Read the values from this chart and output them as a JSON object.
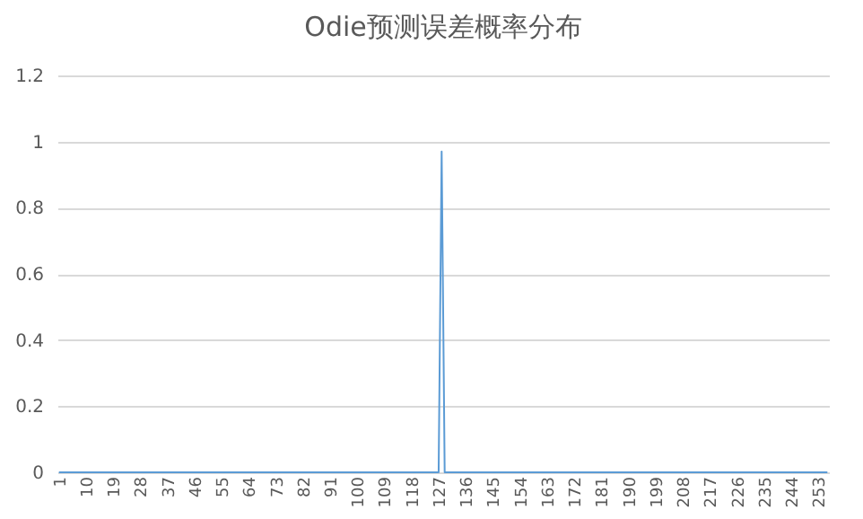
{
  "chart_data": {
    "type": "line",
    "title": "Odie预测误差概率分布",
    "categories": [
      "1",
      null,
      null,
      null,
      null,
      null,
      null,
      null,
      null,
      "10",
      null,
      null,
      null,
      null,
      null,
      null,
      null,
      null,
      "19",
      null,
      null,
      null,
      null,
      null,
      null,
      null,
      null,
      "28",
      null,
      null,
      null,
      null,
      null,
      null,
      null,
      null,
      "37",
      null,
      null,
      null,
      null,
      null,
      null,
      null,
      null,
      "46",
      null,
      null,
      null,
      null,
      null,
      null,
      null,
      null,
      "55",
      null,
      null,
      null,
      null,
      null,
      null,
      null,
      null,
      "64",
      null,
      null,
      null,
      null,
      null,
      null,
      null,
      null,
      "73",
      null,
      null,
      null,
      null,
      null,
      null,
      null,
      null,
      "82",
      null,
      null,
      null,
      null,
      null,
      null,
      null,
      null,
      "91",
      null,
      null,
      null,
      null,
      null,
      null,
      null,
      null,
      "100",
      null,
      null,
      null,
      null,
      null,
      null,
      null,
      null,
      "109",
      null,
      null,
      null,
      null,
      null,
      null,
      null,
      null,
      "118",
      null,
      null,
      null,
      null,
      null,
      null,
      null,
      null,
      "127",
      null,
      null,
      null,
      null,
      null,
      null,
      null,
      null,
      "136",
      null,
      null,
      null,
      null,
      null,
      null,
      null,
      null,
      "145",
      null,
      null,
      null,
      null,
      null,
      null,
      null,
      null,
      "154",
      null,
      null,
      null,
      null,
      null,
      null,
      null,
      null,
      "163",
      null,
      null,
      null,
      null,
      null,
      null,
      null,
      null,
      "172",
      null,
      null,
      null,
      null,
      null,
      null,
      null,
      null,
      "181",
      null,
      null,
      null,
      null,
      null,
      null,
      null,
      null,
      "190",
      null,
      null,
      null,
      null,
      null,
      null,
      null,
      null,
      "199",
      null,
      null,
      null,
      null,
      null,
      null,
      null,
      null,
      "208",
      null,
      null,
      null,
      null,
      null,
      null,
      null,
      null,
      "217",
      null,
      null,
      null,
      null,
      null,
      null,
      null,
      null,
      "226",
      null,
      null,
      null,
      null,
      null,
      null,
      null,
      null,
      "235",
      null,
      null,
      null,
      null,
      null,
      null,
      null,
      null,
      "244",
      null,
      null,
      null,
      null,
      null,
      null,
      null,
      null,
      "253",
      null,
      null,
      null
    ],
    "series": [
      {
        "color": "#5b9bd5",
        "values": [
          0,
          0,
          0,
          0,
          0,
          0,
          0,
          0,
          0,
          0,
          0,
          0,
          0,
          0,
          0,
          0,
          0,
          0,
          0,
          0,
          0,
          0,
          0,
          0,
          0,
          0,
          0,
          0,
          0,
          0,
          0,
          0,
          0,
          0,
          0,
          0,
          0,
          0,
          0,
          0,
          0,
          0,
          0,
          0,
          0,
          0,
          0,
          0,
          0,
          0,
          0,
          0,
          0,
          0,
          0,
          0,
          0,
          0,
          0,
          0,
          0,
          0,
          0,
          0,
          0,
          0,
          0,
          0,
          0,
          0,
          0,
          0,
          0,
          0,
          0,
          0,
          0,
          0,
          0,
          0,
          0,
          0,
          0,
          0,
          0,
          0,
          0,
          0,
          0,
          0,
          0,
          0,
          0,
          0,
          0,
          0,
          0,
          0,
          0,
          0,
          0,
          0,
          0,
          0,
          0,
          0,
          0,
          0,
          0,
          0,
          0,
          0,
          0,
          0,
          0,
          0,
          0,
          0,
          0,
          0,
          0,
          0,
          0,
          0,
          0,
          0,
          0,
          0.97,
          0,
          0,
          0,
          0,
          0,
          0,
          0,
          0,
          0,
          0,
          0,
          0,
          0,
          0,
          0,
          0,
          0,
          0,
          0,
          0,
          0,
          0,
          0,
          0,
          0,
          0,
          0,
          0,
          0,
          0,
          0,
          0,
          0,
          0,
          0,
          0,
          0,
          0,
          0,
          0,
          0,
          0,
          0,
          0,
          0,
          0,
          0,
          0,
          0,
          0,
          0,
          0,
          0,
          0,
          0,
          0,
          0,
          0,
          0,
          0,
          0,
          0,
          0,
          0,
          0,
          0,
          0,
          0,
          0,
          0,
          0,
          0,
          0,
          0,
          0,
          0,
          0,
          0,
          0,
          0,
          0,
          0,
          0,
          0,
          0,
          0,
          0,
          0,
          0,
          0,
          0,
          0,
          0,
          0,
          0,
          0,
          0,
          0,
          0,
          0,
          0,
          0,
          0,
          0,
          0,
          0,
          0,
          0,
          0,
          0,
          0,
          0,
          0,
          0,
          0,
          0,
          0,
          0,
          0,
          0,
          0,
          0,
          0,
          0,
          0,
          0,
          0,
          0
        ]
      }
    ],
    "ylim": [
      0,
      1.2
    ],
    "yticks": [
      0,
      0.2,
      0.4,
      0.6,
      0.8,
      1,
      1.2
    ],
    "grid": "y",
    "marker": "none",
    "line_style": "solid"
  }
}
